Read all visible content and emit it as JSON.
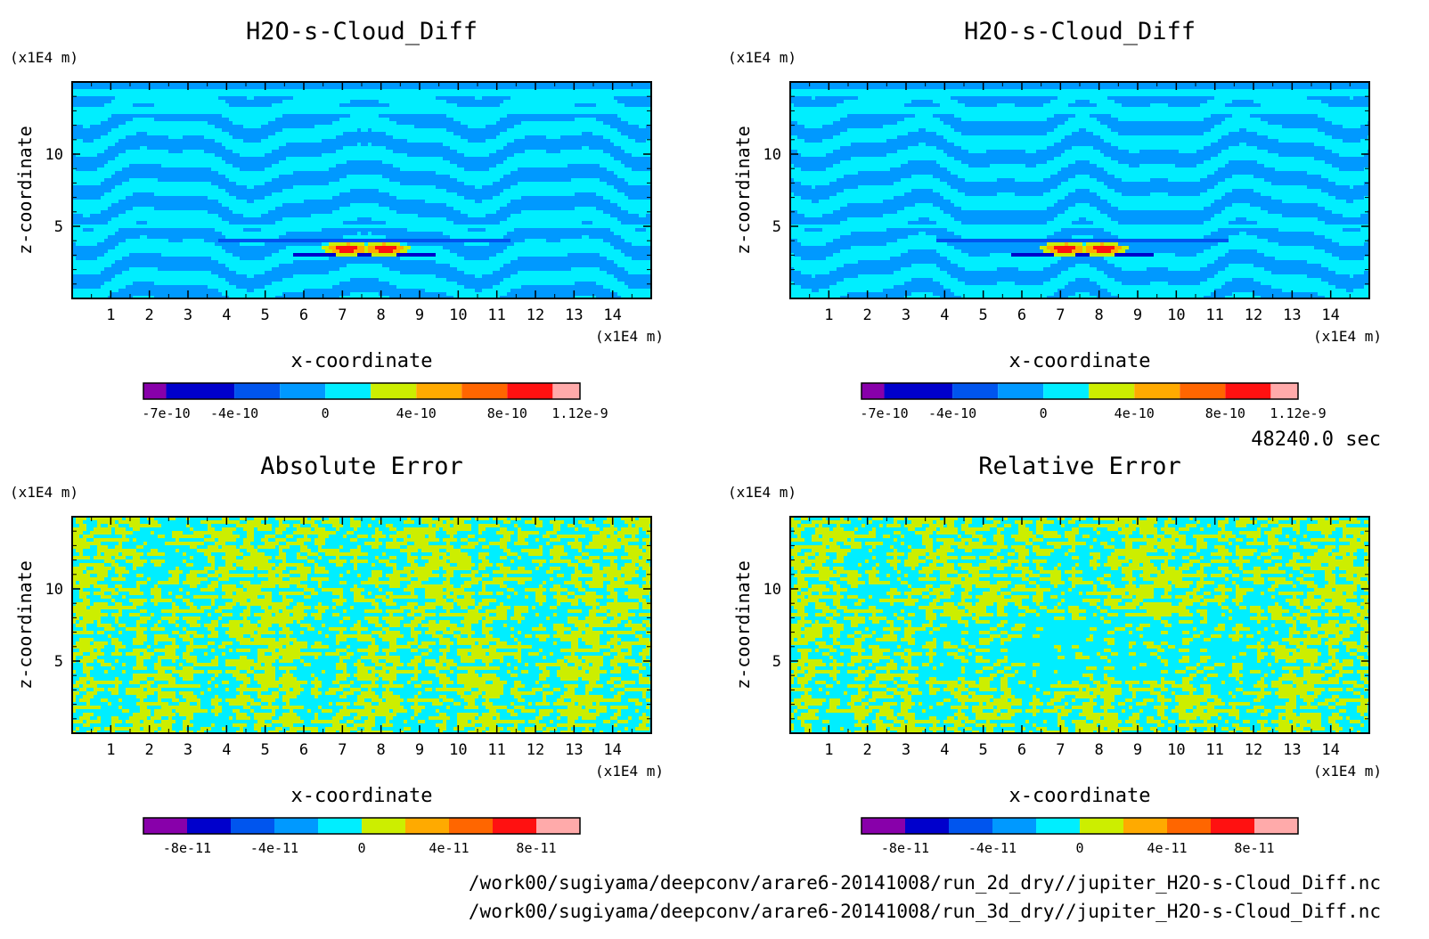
{
  "figure": {
    "time_label": "48240.0 sec",
    "footer_lines": [
      "/work00/sugiyama/deepconv/arare6-20141008/run_2d_dry//jupiter_H2O-s-Cloud_Diff.nc",
      "/work00/sugiyama/deepconv/arare6-20141008/run_3d_dry//jupiter_H2O-s-Cloud_Diff.nc"
    ]
  },
  "chart_data": [
    {
      "type": "heatmap",
      "title": "H2O-s-Cloud_Diff",
      "xlabel": "x-coordinate",
      "ylabel": "z-coordinate",
      "x_unit": "(x1E4 m)",
      "y_unit": "(x1E4 m)",
      "xlim": [
        0,
        15
      ],
      "ylim": [
        0,
        15
      ],
      "x_ticks": [
        "1",
        "2",
        "3",
        "4",
        "5",
        "6",
        "7",
        "8",
        "9",
        "10",
        "11",
        "12",
        "13",
        "14"
      ],
      "y_ticks": [
        "5",
        "10"
      ],
      "pattern": "stripes",
      "anomaly": true,
      "colorbar": {
        "colors": [
          "#8800aa",
          "#0000cc",
          "#0055ee",
          "#0099ff",
          "#00eeff",
          "#ccee00",
          "#ffaa00",
          "#ff6600",
          "#ff1111",
          "#ffaaaa"
        ],
        "boundaries": [
          -8e-10,
          -7e-10,
          -4e-10,
          -2e-10,
          0,
          2e-10,
          4e-10,
          6e-10,
          8e-10,
          1e-09,
          1.12e-09
        ],
        "tick_labels": [
          {
            "value": -7e-10,
            "label": "-7e-10"
          },
          {
            "value": -4e-10,
            "label": "-4e-10"
          },
          {
            "value": 0,
            "label": "0"
          },
          {
            "value": 4e-10,
            "label": "4e-10"
          },
          {
            "value": 8e-10,
            "label": "8e-10"
          },
          {
            "value": 1.12e-09,
            "label": "1.12e-9"
          }
        ]
      }
    },
    {
      "type": "heatmap",
      "title": "H2O-s-Cloud_Diff",
      "xlabel": "x-coordinate",
      "ylabel": "z-coordinate",
      "x_unit": "(x1E4 m)",
      "y_unit": "(x1E4 m)",
      "xlim": [
        0,
        15
      ],
      "ylim": [
        0,
        15
      ],
      "x_ticks": [
        "1",
        "2",
        "3",
        "4",
        "5",
        "6",
        "7",
        "8",
        "9",
        "10",
        "11",
        "12",
        "13",
        "14"
      ],
      "y_ticks": [
        "5",
        "10"
      ],
      "pattern": "stripes",
      "anomaly": true,
      "colorbar": {
        "colors": [
          "#8800aa",
          "#0000cc",
          "#0055ee",
          "#0099ff",
          "#00eeff",
          "#ccee00",
          "#ffaa00",
          "#ff6600",
          "#ff1111",
          "#ffaaaa"
        ],
        "boundaries": [
          -8e-10,
          -7e-10,
          -4e-10,
          -2e-10,
          0,
          2e-10,
          4e-10,
          6e-10,
          8e-10,
          1e-09,
          1.12e-09
        ],
        "tick_labels": [
          {
            "value": -7e-10,
            "label": "-7e-10"
          },
          {
            "value": -4e-10,
            "label": "-4e-10"
          },
          {
            "value": 0,
            "label": "0"
          },
          {
            "value": 4e-10,
            "label": "4e-10"
          },
          {
            "value": 8e-10,
            "label": "8e-10"
          },
          {
            "value": 1.12e-09,
            "label": "1.12e-9"
          }
        ]
      }
    },
    {
      "type": "heatmap",
      "title": "Absolute Error",
      "xlabel": "x-coordinate",
      "ylabel": "z-coordinate",
      "x_unit": "(x1E4 m)",
      "y_unit": "(x1E4 m)",
      "xlim": [
        0,
        15
      ],
      "ylim": [
        0,
        15
      ],
      "x_ticks": [
        "1",
        "2",
        "3",
        "4",
        "5",
        "6",
        "7",
        "8",
        "9",
        "10",
        "11",
        "12",
        "13",
        "14"
      ],
      "y_ticks": [
        "5",
        "10"
      ],
      "pattern": "noise",
      "anomaly": false,
      "colorbar": {
        "colors": [
          "#8800aa",
          "#0000cc",
          "#0055ee",
          "#0099ff",
          "#00eeff",
          "#ccee00",
          "#ffaa00",
          "#ff6600",
          "#ff1111",
          "#ffaaaa"
        ],
        "boundaries": [
          -1e-10,
          -8e-11,
          -6e-11,
          -4e-11,
          -2e-11,
          0,
          2e-11,
          4e-11,
          6e-11,
          8e-11,
          1e-10
        ],
        "tick_labels": [
          {
            "value": -8e-11,
            "label": "-8e-11"
          },
          {
            "value": -4e-11,
            "label": "-4e-11"
          },
          {
            "value": 0,
            "label": "0"
          },
          {
            "value": 4e-11,
            "label": "4e-11"
          },
          {
            "value": 8e-11,
            "label": "8e-11"
          }
        ]
      }
    },
    {
      "type": "heatmap",
      "title": "Relative Error",
      "xlabel": "x-coordinate",
      "ylabel": "z-coordinate",
      "x_unit": "(x1E4 m)",
      "y_unit": "(x1E4 m)",
      "xlim": [
        0,
        15
      ],
      "ylim": [
        0,
        15
      ],
      "x_ticks": [
        "1",
        "2",
        "3",
        "4",
        "5",
        "6",
        "7",
        "8",
        "9",
        "10",
        "11",
        "12",
        "13",
        "14"
      ],
      "y_ticks": [
        "5",
        "10"
      ],
      "pattern": "noise",
      "anomaly": false,
      "colorbar": {
        "colors": [
          "#8800aa",
          "#0000cc",
          "#0055ee",
          "#0099ff",
          "#00eeff",
          "#ccee00",
          "#ffaa00",
          "#ff6600",
          "#ff1111",
          "#ffaaaa"
        ],
        "boundaries": [
          -1e-10,
          -8e-11,
          -6e-11,
          -4e-11,
          -2e-11,
          0,
          2e-11,
          4e-11,
          6e-11,
          8e-11,
          1e-10
        ],
        "tick_labels": [
          {
            "value": -8e-11,
            "label": "-8e-11"
          },
          {
            "value": -4e-11,
            "label": "-4e-11"
          },
          {
            "value": 0,
            "label": "0"
          },
          {
            "value": 4e-11,
            "label": "4e-11"
          },
          {
            "value": 8e-11,
            "label": "8e-11"
          }
        ]
      }
    }
  ]
}
